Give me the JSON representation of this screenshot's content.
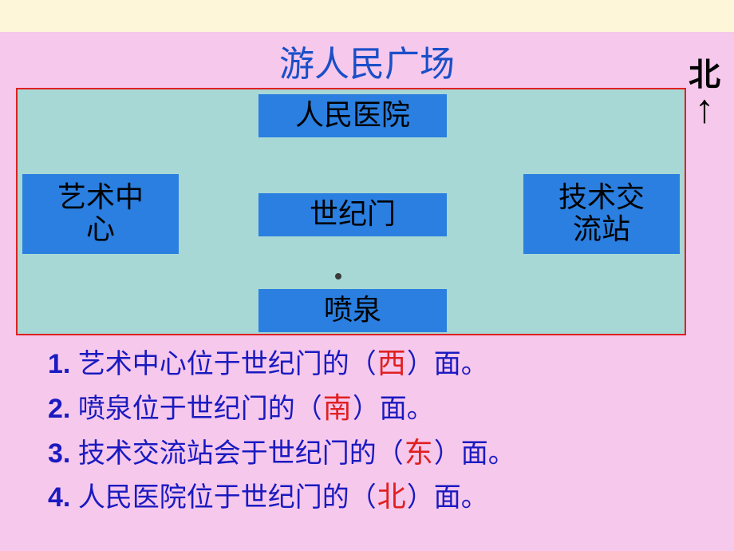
{
  "title": "游人民广场",
  "compass": {
    "label": "北"
  },
  "map": {
    "background_color": "#a7d8d6",
    "border_color": "#e02020",
    "box_color": "#2a7fe0",
    "locations": {
      "top": "人民医院",
      "left": "艺术中\n心",
      "center": "世纪门",
      "right": "技术交\n流站",
      "bottom": "喷泉"
    }
  },
  "questions": [
    {
      "num": "1.",
      "pre": "艺术中心位于世纪门的（",
      "ans": "西",
      "post": "）面。"
    },
    {
      "num": "2.",
      "pre": "喷泉位于世纪门的（",
      "ans": "南",
      "post": "）面。"
    },
    {
      "num": "3.",
      "pre": "技术交流站会于世纪门的（",
      "ans": "东",
      "post": "）面。"
    },
    {
      "num": "4.",
      "pre": "人民医院位于世纪门的（",
      "ans": "北",
      "post": "）面。"
    }
  ],
  "colors": {
    "page_bg": "#f6c8ec",
    "top_band": "#fdf6d8",
    "title_color": "#1a4fc8",
    "question_color": "#1a1ac0",
    "answer_color": "#e02020"
  }
}
